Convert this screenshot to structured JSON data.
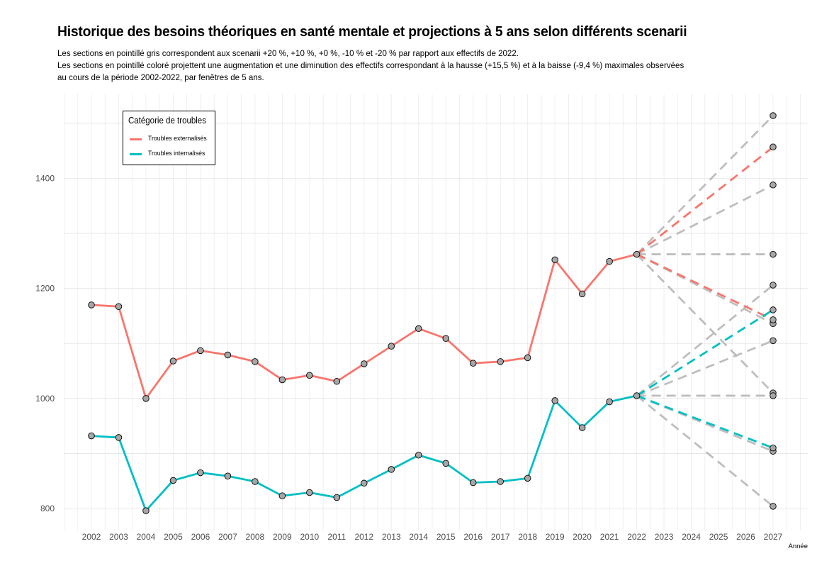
{
  "title": "Historique des besoins théoriques en santé mentale et projections à 5 ans selon différents scenarii",
  "subtitle_lines": [
    "Les sections en pointillé gris correspondent aux scenarii +20 %, +10 %, +0 %, -10 % et -20 % par rapport aux effectifs de 2022.",
    "Les sections en pointillé coloré projettent une augmentation et une diminution des effectifs correspondant à la hausse (+15,5 %) et à la baisse (-9,4 %) maximales observées",
    "au cours de la période 2002-2022, par fenêtres de 5 ans."
  ],
  "legend": {
    "title": "Catégorie de troubles",
    "items": [
      {
        "label": "Troubles externalisés",
        "color": "#F8766D"
      },
      {
        "label": "Troubles internalisés",
        "color": "#00BFC4"
      }
    ]
  },
  "chart_data": {
    "type": "line",
    "xlabel": "Année",
    "ylabel": "",
    "x": [
      2002,
      2003,
      2004,
      2005,
      2006,
      2007,
      2008,
      2009,
      2010,
      2011,
      2012,
      2013,
      2014,
      2015,
      2016,
      2017,
      2018,
      2019,
      2020,
      2021,
      2022
    ],
    "x_ticks": [
      2002,
      2003,
      2004,
      2005,
      2006,
      2007,
      2008,
      2009,
      2010,
      2011,
      2012,
      2013,
      2014,
      2015,
      2016,
      2017,
      2018,
      2019,
      2020,
      2021,
      2022,
      2023,
      2024,
      2025,
      2026,
      2027
    ],
    "y_ticks": [
      800,
      1000,
      1200,
      1400
    ],
    "xlim": [
      2001,
      2028
    ],
    "ylim": [
      760,
      1550
    ],
    "grid": true,
    "legend_position": "top-left",
    "series": [
      {
        "name": "Troubles externalisés",
        "color": "#F8766D",
        "values": [
          1170,
          1167,
          1000,
          1068,
          1087,
          1079,
          1067,
          1034,
          1042,
          1031,
          1063,
          1095,
          1127,
          1109,
          1064,
          1067,
          1074,
          1252,
          1190,
          1249,
          1262
        ],
        "projection_base": 1262,
        "colored_projections": [
          1457,
          1143
        ],
        "grey_scenarios": [
          1514,
          1388,
          1262,
          1136,
          1010
        ]
      },
      {
        "name": "Troubles internalisés",
        "color": "#00BFC4",
        "values": [
          932,
          929,
          796,
          851,
          865,
          859,
          849,
          823,
          829,
          820,
          846,
          871,
          897,
          882,
          847,
          849,
          855,
          996,
          947,
          994,
          1005
        ],
        "projection_base": 1005,
        "colored_projections": [
          1161,
          910
        ],
        "grey_scenarios": [
          1206,
          1105,
          1005,
          904,
          804
        ]
      }
    ],
    "point_color": "#A6A6A6",
    "scenario_color": "#BEBEBE"
  }
}
